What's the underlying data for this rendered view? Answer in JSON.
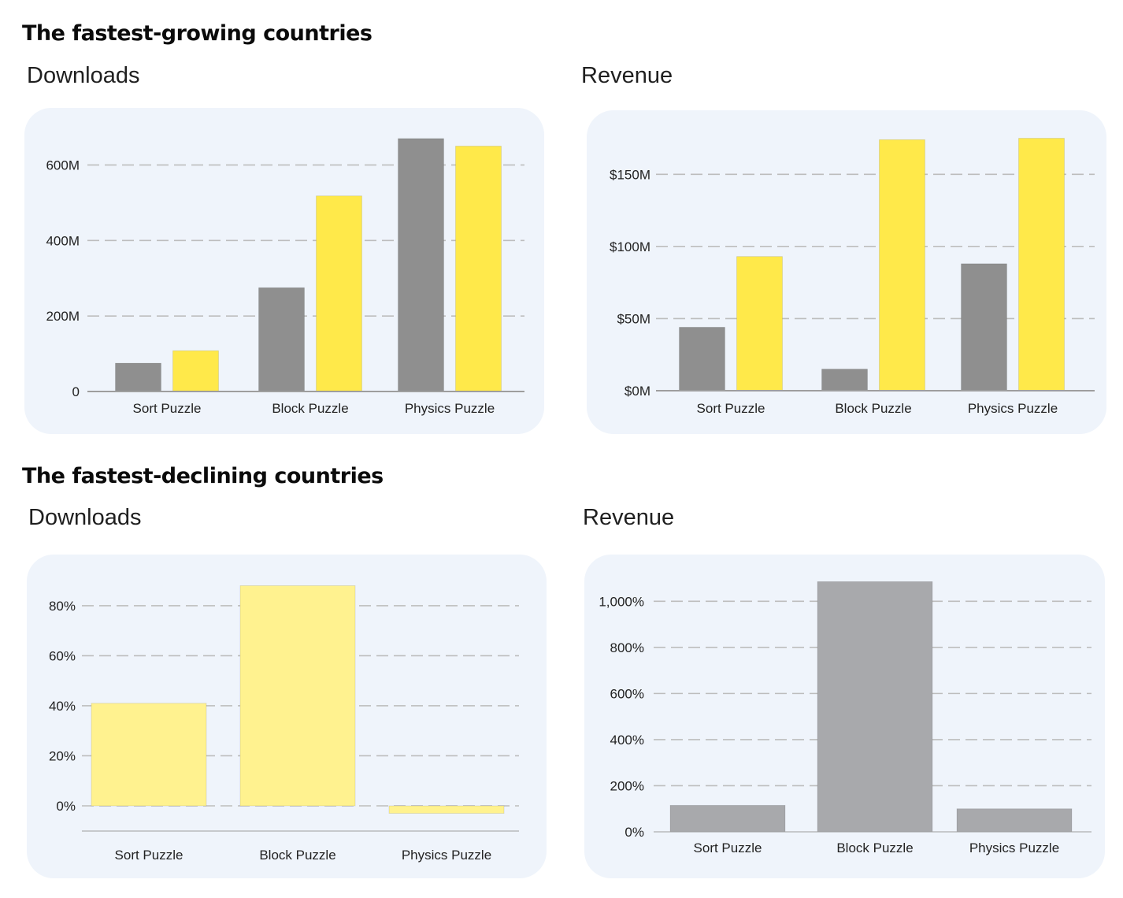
{
  "sections": {
    "growing": {
      "title": "The fastest-growing countries"
    },
    "declining": {
      "title": "The fastest-declining countries"
    }
  },
  "colors": {
    "grey": "#8f8f8f",
    "yellow": "#ffe94a",
    "pale_yellow": "#fff28f",
    "light_grey": "#a8a9ac",
    "grid": "#bdbdbd",
    "axis": "#9e9e9e",
    "panel_bg": "#eff4fb"
  },
  "chart_data": [
    {
      "id": "growing-downloads",
      "label": "Downloads",
      "type": "bar",
      "categories": [
        "Sort Puzzle",
        "Block Puzzle",
        "Physics Puzzle"
      ],
      "series": [
        {
          "name": "series-1",
          "color": "#8f8f8f",
          "values": [
            75,
            275,
            670
          ]
        },
        {
          "name": "series-2",
          "color": "#ffe94a",
          "values": [
            108,
            518,
            650
          ]
        }
      ],
      "yticks": [
        0,
        200,
        400,
        600
      ],
      "ytick_labels": [
        "0",
        "200M",
        "400M",
        "600M"
      ],
      "ylim": [
        0,
        676
      ],
      "units": "M downloads",
      "grid": true,
      "legend": "none"
    },
    {
      "id": "growing-revenue",
      "label": "Revenue",
      "type": "bar",
      "categories": [
        "Sort Puzzle",
        "Block Puzzle",
        "Physics Puzzle"
      ],
      "series": [
        {
          "name": "series-1",
          "color": "#8f8f8f",
          "values": [
            44,
            15,
            88
          ]
        },
        {
          "name": "series-2",
          "color": "#ffe94a",
          "values": [
            93,
            174,
            175
          ]
        }
      ],
      "yticks": [
        0,
        50,
        100,
        150
      ],
      "ytick_labels": [
        "$0M",
        "$50M",
        "$100M",
        "$150M"
      ],
      "ylim": [
        0,
        178
      ],
      "units": "$M",
      "grid": true,
      "legend": "none"
    },
    {
      "id": "declining-downloads",
      "label": "Downloads",
      "type": "bar",
      "categories": [
        "Sort Puzzle",
        "Block Puzzle",
        "Physics Puzzle"
      ],
      "series": [
        {
          "name": "change",
          "color": "#fff28f",
          "values": [
            41,
            88,
            -3
          ]
        }
      ],
      "yticks": [
        0,
        20,
        40,
        60,
        80
      ],
      "ytick_labels": [
        "0%",
        "20%",
        "40%",
        "60%",
        "80%"
      ],
      "ylim": [
        -10,
        91
      ],
      "units": "%",
      "grid": true,
      "legend": "none"
    },
    {
      "id": "declining-revenue",
      "label": "Revenue",
      "type": "bar",
      "categories": [
        "Sort Puzzle",
        "Block Puzzle",
        "Physics Puzzle"
      ],
      "series": [
        {
          "name": "change",
          "color": "#a8a9ac",
          "values": [
            115,
            1085,
            100
          ]
        }
      ],
      "yticks": [
        0,
        200,
        400,
        600,
        800,
        1000
      ],
      "ytick_labels": [
        "0%",
        "200%",
        "400%",
        "600%",
        "800%",
        "1,000%"
      ],
      "ylim": [
        0,
        1100
      ],
      "units": "%",
      "grid": true,
      "legend": "none"
    }
  ]
}
